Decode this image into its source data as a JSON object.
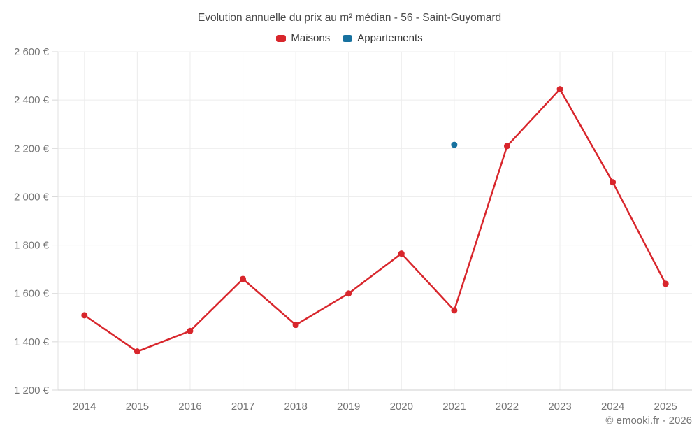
{
  "title": "Evolution annuelle du prix au m² médian - 56 - Saint-Guyomard",
  "legend": {
    "items": [
      {
        "label": "Maisons",
        "color": "#d8262c"
      },
      {
        "label": "Appartements",
        "color": "#17719f"
      }
    ]
  },
  "footer": "© emooki.fr - 2026",
  "colors": {
    "grid": "#ececec",
    "axis_left": "#e2e2e2",
    "axis_bottom": "#cfcfcf",
    "tick": "#d8d8d8"
  },
  "chart_data": {
    "type": "line",
    "title": "Evolution annuelle du prix au m² médian - 56 - Saint-Guyomard",
    "x": [
      "2014",
      "2015",
      "2016",
      "2017",
      "2018",
      "2019",
      "2020",
      "2021",
      "2022",
      "2023",
      "2024",
      "2025"
    ],
    "series": [
      {
        "name": "Maisons",
        "color": "#d8262c",
        "values": [
          1510,
          1360,
          1445,
          1660,
          1470,
          1600,
          1765,
          1530,
          2210,
          2445,
          2060,
          1640
        ]
      },
      {
        "name": "Appartements",
        "color": "#17719f",
        "values": [
          null,
          null,
          null,
          null,
          null,
          null,
          null,
          2215,
          null,
          null,
          null,
          null
        ]
      }
    ],
    "ylim": [
      1200,
      2600
    ],
    "ytick_step": 200,
    "ytick_suffix": " €",
    "grid": true,
    "legend_position": "top"
  }
}
